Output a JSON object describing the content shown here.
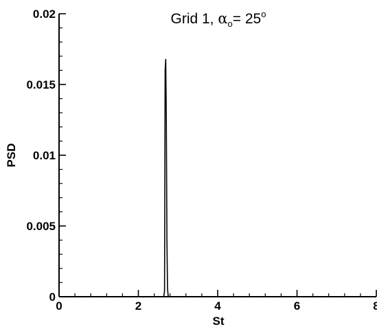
{
  "chart_data": {
    "type": "line",
    "title": {
      "main": "Grid 1, ",
      "alpha": "α",
      "alpha_sub": "o",
      "rest": "= 25",
      "sup": "o"
    },
    "xlabel": "St",
    "ylabel": "PSD",
    "xlim": [
      0,
      8
    ],
    "ylim": [
      0,
      0.02
    ],
    "xticks": [
      0,
      2,
      4,
      6,
      8
    ],
    "xtick_labels": [
      "0",
      "2",
      "4",
      "6",
      "8"
    ],
    "yticks": [
      0,
      0.005,
      0.01,
      0.015,
      0.02
    ],
    "ytick_labels": [
      "0",
      "0.005",
      "0.01",
      "0.015",
      "0.02"
    ],
    "x_minor_step": 0.4,
    "y_minor_step": 0.001,
    "grid": false,
    "legend": "none",
    "series": [
      {
        "x": [
          0,
          2.64,
          2.66,
          2.675,
          2.69,
          2.705,
          2.72,
          2.735,
          2.75,
          2.765,
          8
        ],
        "y": [
          0,
          0,
          0.0004,
          0.016,
          0.0168,
          0.0125,
          0.004,
          0.0006,
          0.0001,
          0,
          0
        ]
      }
    ]
  }
}
